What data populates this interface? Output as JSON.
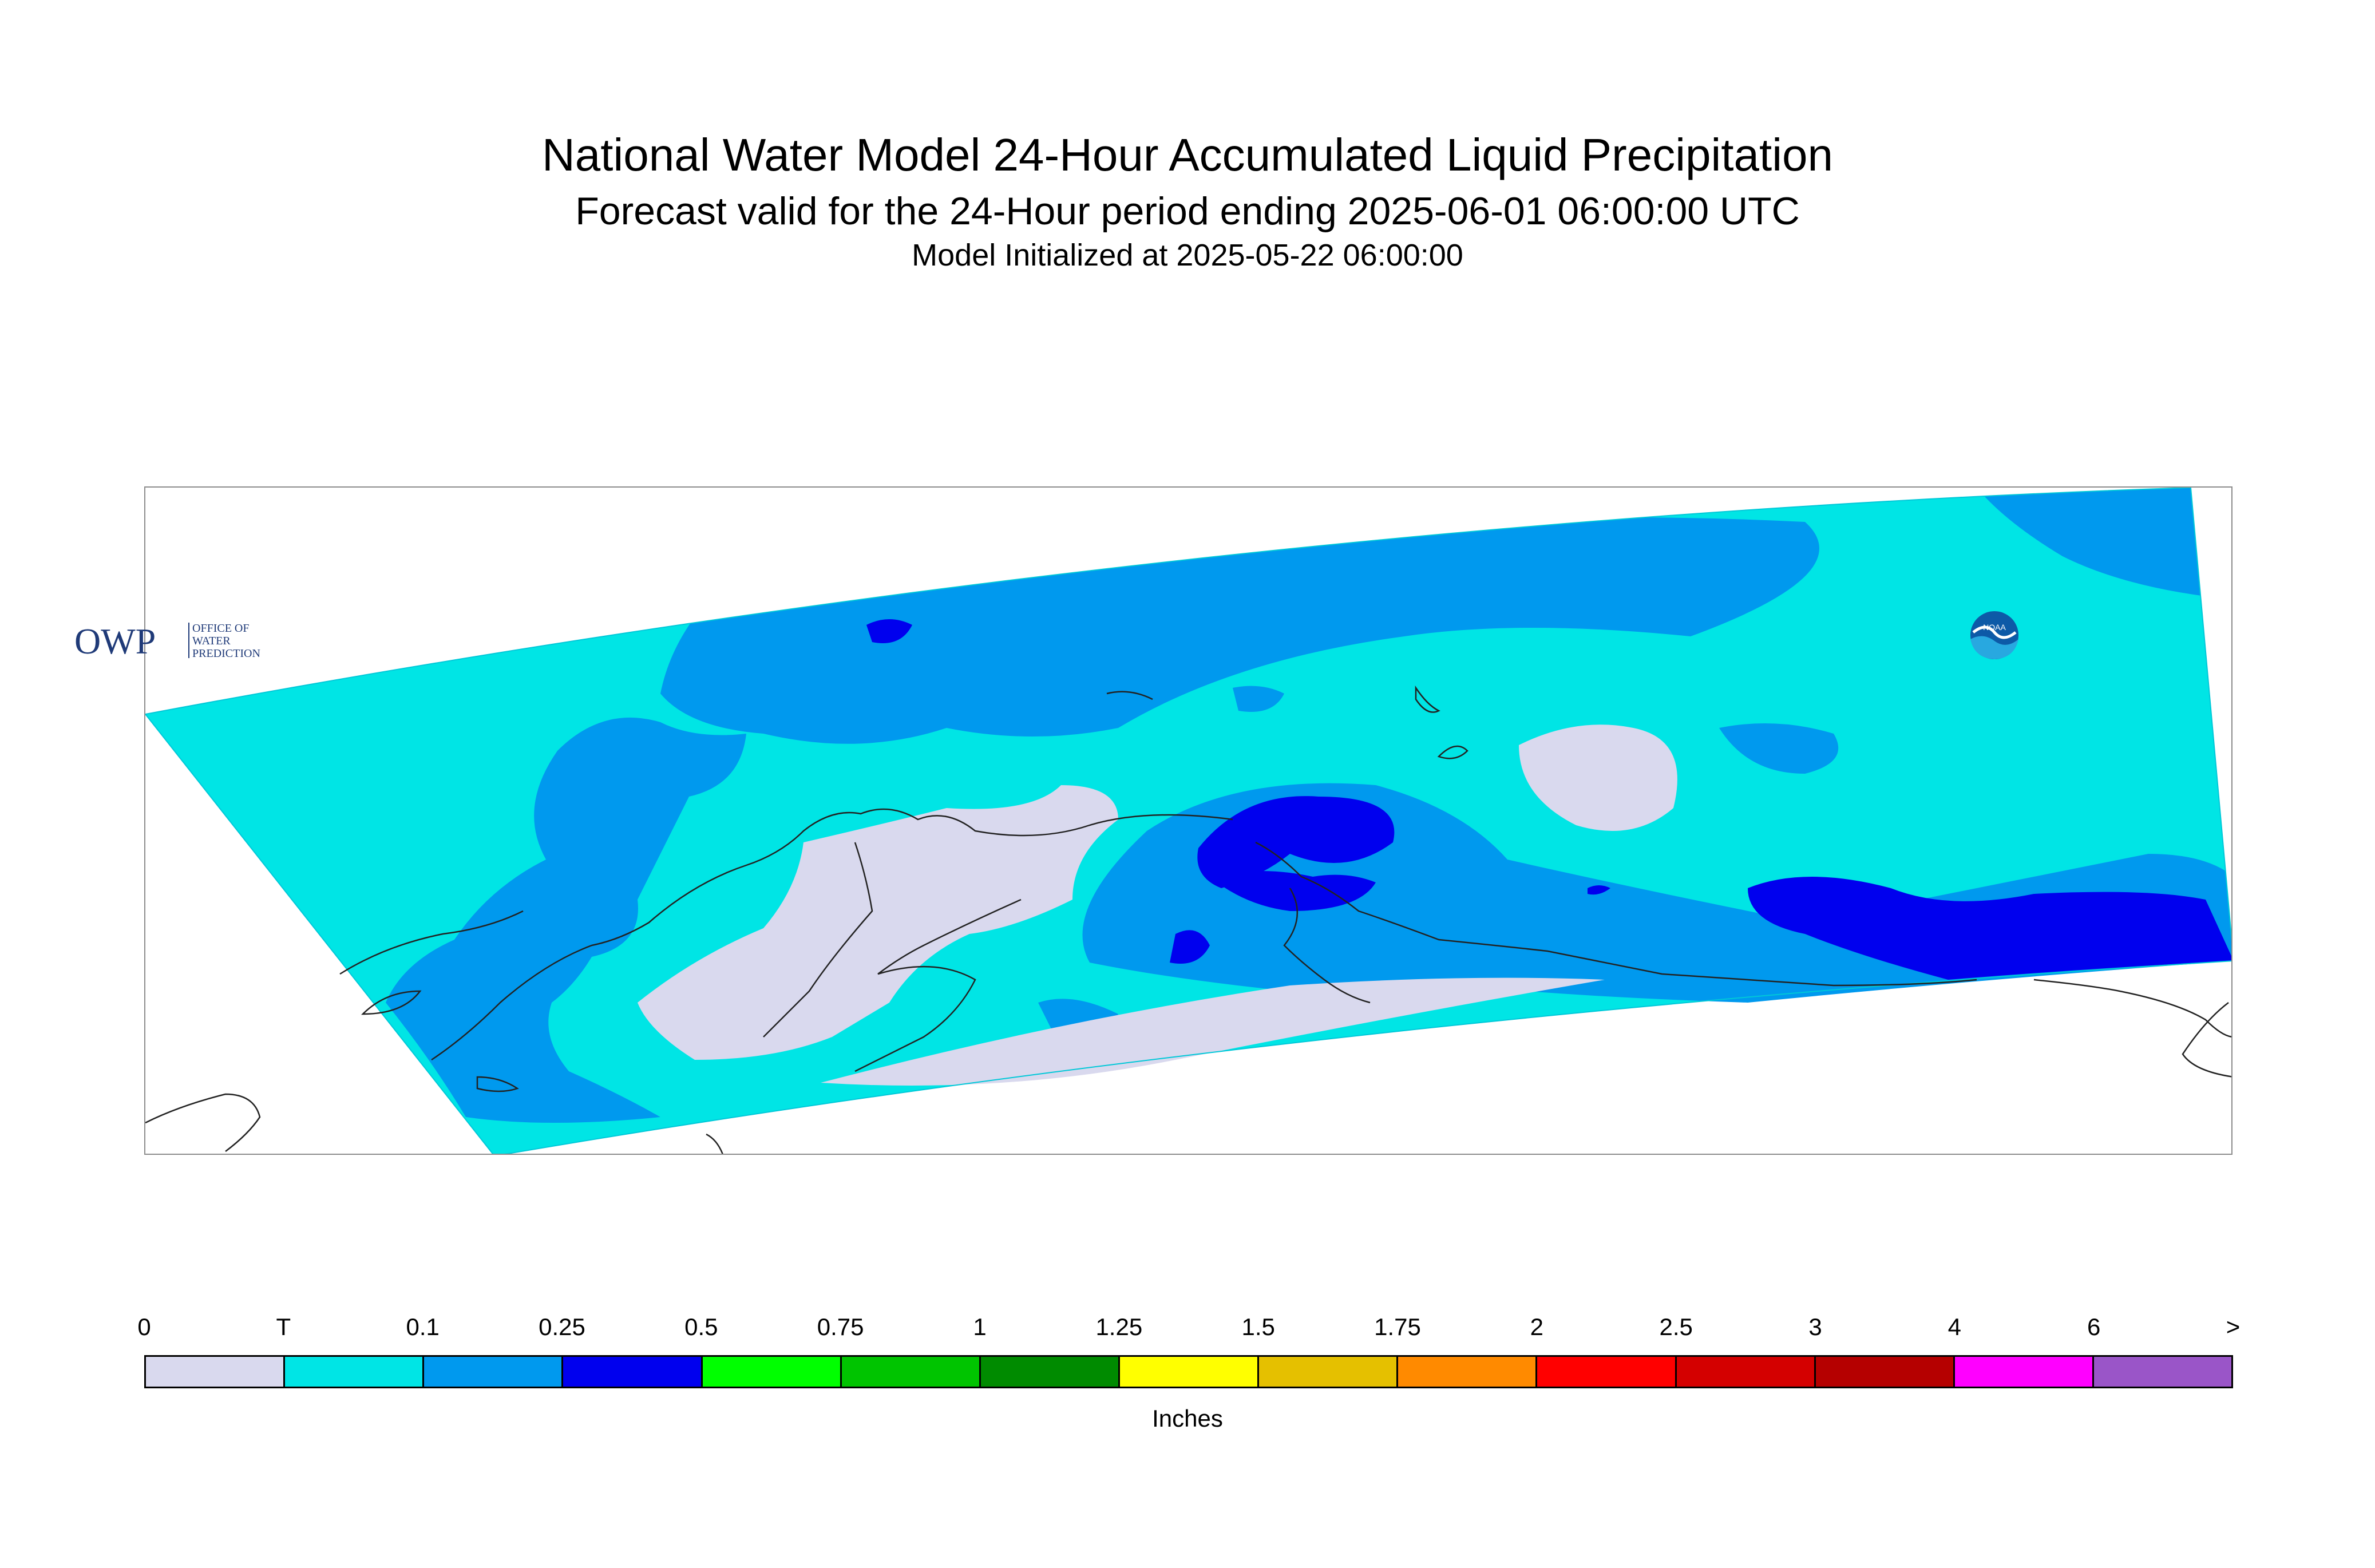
{
  "title": "National Water Model 24-Hour Accumulated Liquid Precipitation",
  "subtitle": "Forecast valid for the 24-Hour period ending 2025-06-01 06:00:00 UTC",
  "initialized": "Model Initialized at 2025-05-22 06:00:00",
  "logos": {
    "owp": {
      "mark": "OWP",
      "text_lines": [
        "OFFICE OF",
        "WATER",
        "PREDICTION"
      ]
    },
    "noaa": {
      "mark": "NOAA"
    }
  },
  "legend": {
    "tick_labels": [
      "0",
      "T",
      "0.1",
      "0.25",
      "0.5",
      "0.75",
      "1",
      "1.25",
      "1.5",
      "1.75",
      "2",
      "2.5",
      "3",
      "4",
      "6",
      ">"
    ],
    "colors": [
      "#d9d9ee",
      "#00e5e5",
      "#0099ee",
      "#0000ee",
      "#00ff00",
      "#00c400",
      "#008b00",
      "#ffff00",
      "#e5c000",
      "#ff8a00",
      "#ff0000",
      "#d40000",
      "#b50000",
      "#ff00ff",
      "#9a55c8"
    ],
    "units": "Inches"
  },
  "colors": {
    "none": "#d9d9ee",
    "trace": "#00e5e5",
    "light": "#0099ee",
    "moderate": "#0000ee",
    "coastline": "#222222"
  }
}
